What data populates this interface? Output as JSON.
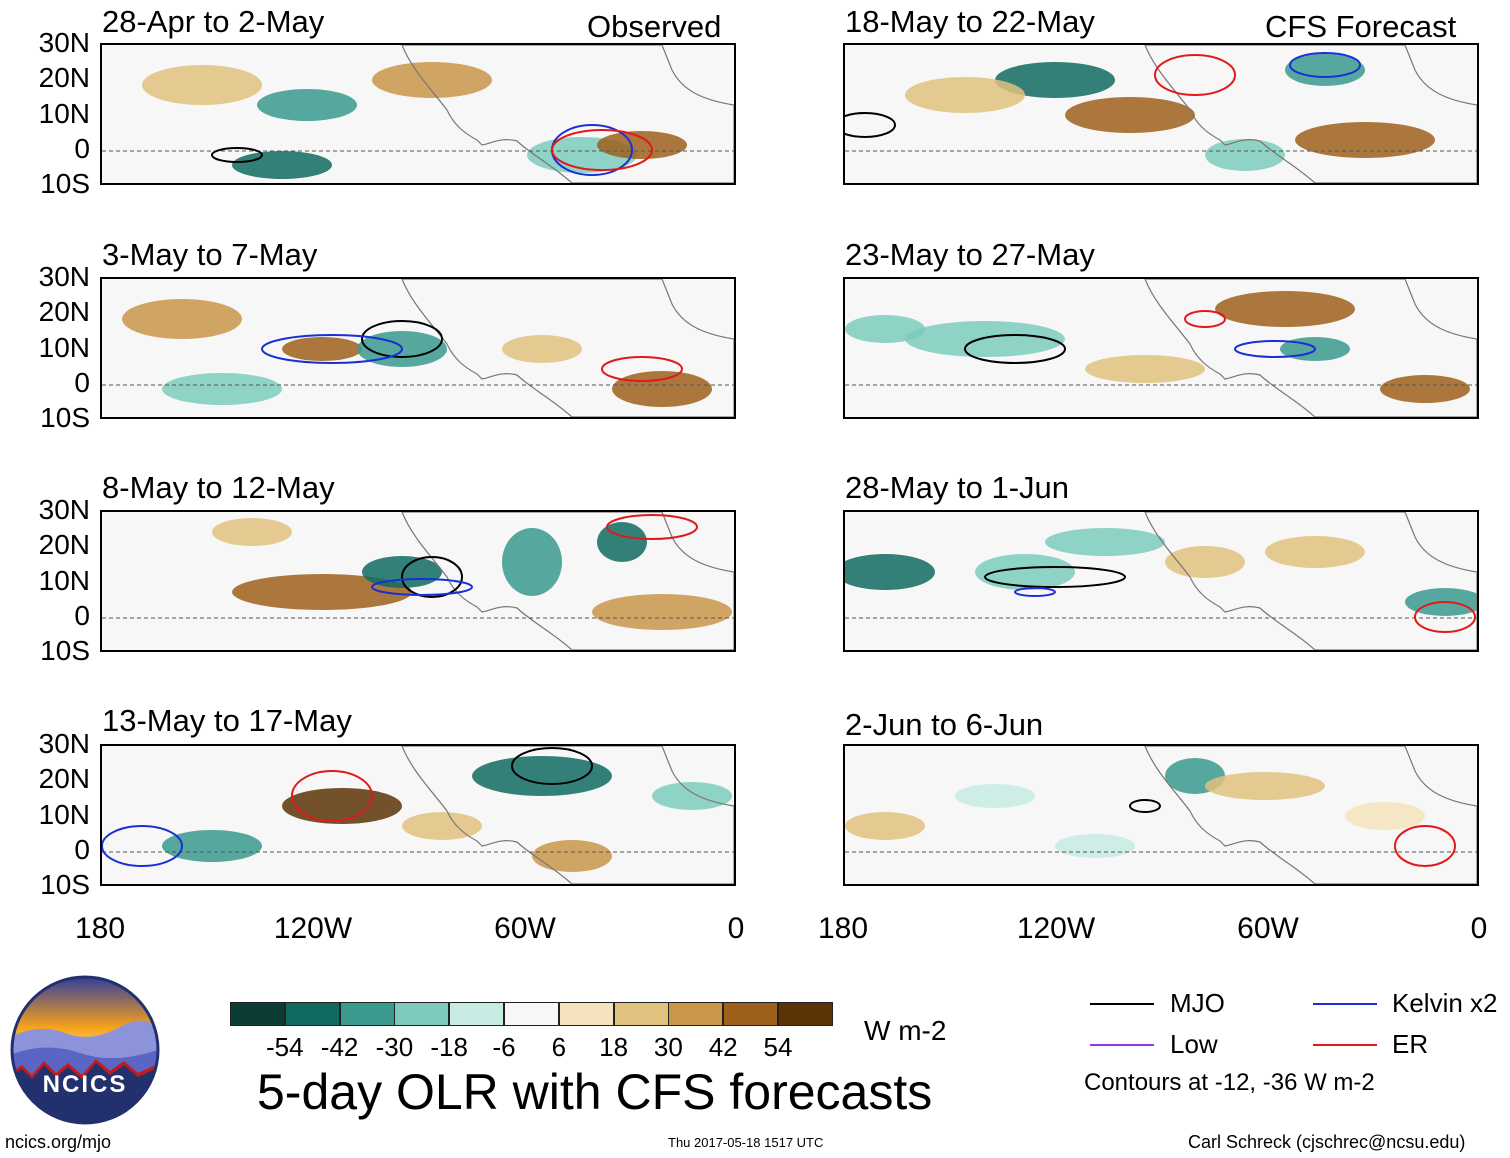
{
  "panels": [
    {
      "title": "28-Apr to 2-May",
      "tag": "Observed"
    },
    {
      "title": "18-May to 22-May",
      "tag": "CFS Forecast"
    },
    {
      "title": "3-May to 7-May",
      "tag": ""
    },
    {
      "title": "23-May to 27-May",
      "tag": ""
    },
    {
      "title": "8-May to 12-May",
      "tag": ""
    },
    {
      "title": "28-May to 1-Jun",
      "tag": ""
    },
    {
      "title": "13-May to 17-May",
      "tag": ""
    },
    {
      "title": "2-Jun to 6-Jun",
      "tag": ""
    }
  ],
  "lat_labels": [
    "30N",
    "20N",
    "10N",
    "0",
    "10S"
  ],
  "lon_labels": [
    "180",
    "120W",
    "60W",
    "0"
  ],
  "colorbar": {
    "colors": [
      "#0b3d36",
      "#0f6b60",
      "#3a9a8e",
      "#7ccbbd",
      "#c6ebe3",
      "#f7f7f7",
      "#f4e3bd",
      "#e0c27e",
      "#c9964a",
      "#9e601b",
      "#5c3407"
    ],
    "labels": [
      "-54",
      "-42",
      "-30",
      "-18",
      "-6",
      "6",
      "18",
      "30",
      "42",
      "54"
    ],
    "units": "W m-2"
  },
  "main_title": "5-day OLR with CFS forecasts",
  "legend": {
    "items": [
      {
        "label": "MJO",
        "color": "#000000"
      },
      {
        "label": "Kelvin x2",
        "color": "#1a2fd6"
      },
      {
        "label": "Low",
        "color": "#9a33e0"
      },
      {
        "label": "ER",
        "color": "#e01a1a"
      }
    ],
    "note": "Contours at -12, -36 W m-2"
  },
  "logo": {
    "text": "NCICS"
  },
  "footer": {
    "left": "ncics.org/mjo",
    "center": "Thu 2017-05-18 1517 UTC",
    "right": "Carl Schreck (cjschrec@ncsu.edu)"
  }
}
